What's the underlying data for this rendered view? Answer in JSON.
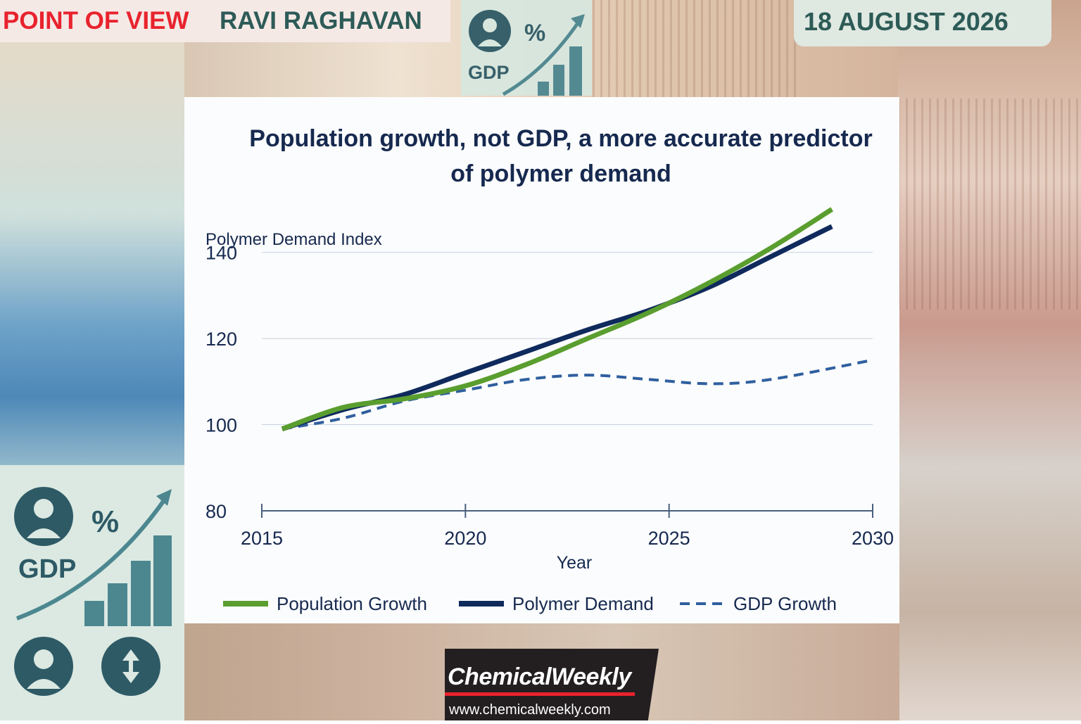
{
  "header": {
    "pov_label": "POINT OF VIEW",
    "author": "RAVI RAGHAVAN",
    "date": "18 AUGUST 2026"
  },
  "badge_top": {
    "percent": "%",
    "gdp": "GDP"
  },
  "badge_left": {
    "percent": "%",
    "gdp": "GDP"
  },
  "footer": {
    "brand": "ChemicalWeekly",
    "url": "www.chemicalweekly.com"
  },
  "colors": {
    "population": "#5a9e2f",
    "polymer": "#0f2a5c",
    "gdp": "#2f5f9f",
    "title": "#16294f",
    "accent_red": "#e8232e",
    "teal": "#2d5b57"
  },
  "chart_data": {
    "type": "line",
    "title_line1": "Population growth, not GDP, a more accurate predictor",
    "title_line2": "of polymer demand",
    "ylabel": "Polymer Demand Index",
    "xlabel": "Year",
    "ylim": [
      80,
      145
    ],
    "xlim": [
      2015,
      2030
    ],
    "yticks": [
      80,
      100,
      120,
      140
    ],
    "xticks": [
      2015,
      2020,
      2025,
      2030
    ],
    "grid": true,
    "legend_position": "bottom",
    "series": [
      {
        "name": "Population Growth",
        "style": "solid",
        "color": "#5a9e2f",
        "x": [
          2015.5,
          2017,
          2018.5,
          2020,
          2021.5,
          2023,
          2024.5,
          2026,
          2027.5,
          2029
        ],
        "y": [
          99,
          104,
          106,
          109,
          114,
          120,
          126,
          133,
          141,
          150
        ]
      },
      {
        "name": "Polymer Demand",
        "style": "solid",
        "color": "#0f2a5c",
        "x": [
          2015.5,
          2017,
          2018.5,
          2020,
          2021.5,
          2023,
          2024.5,
          2026,
          2027.5,
          2029
        ],
        "y": [
          99,
          103.5,
          107,
          112,
          117,
          122,
          126.5,
          132,
          139,
          146
        ]
      },
      {
        "name": "GDP Growth",
        "style": "dashed",
        "color": "#2f5f9f",
        "x": [
          2015.5,
          2017,
          2018.5,
          2020,
          2021.5,
          2023,
          2024.5,
          2026,
          2027.5,
          2030
        ],
        "y": [
          99,
          101.5,
          105.5,
          108,
          110.5,
          111.5,
          110.5,
          109.5,
          110.5,
          115
        ]
      }
    ]
  }
}
